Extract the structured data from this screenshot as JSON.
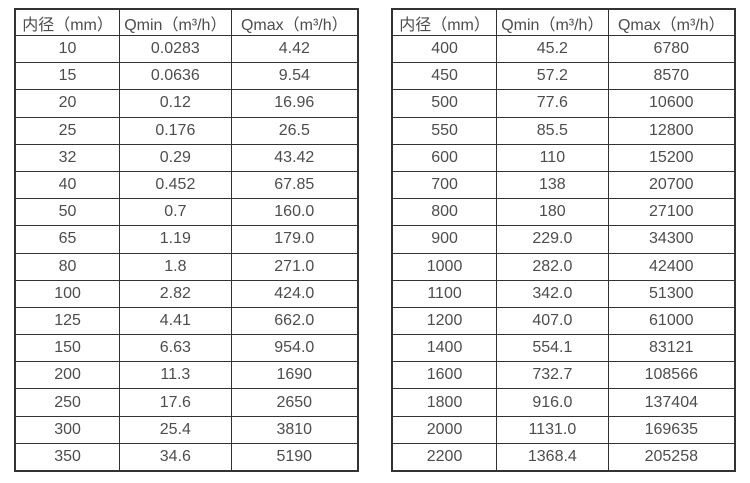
{
  "page": {
    "background": "#ffffff",
    "text_color": "#4d4d4d",
    "border_color": "#333333"
  },
  "tables": [
    {
      "name": "flow-spec-table-small-diameters",
      "headers": [
        "内径（mm）",
        "Qmin（m³/h）",
        "Qmax（m³/h）"
      ],
      "rows": [
        [
          "10",
          "0.0283",
          "4.42"
        ],
        [
          "15",
          "0.0636",
          "9.54"
        ],
        [
          "20",
          "0.12",
          "16.96"
        ],
        [
          "25",
          "0.176",
          "26.5"
        ],
        [
          "32",
          "0.29",
          "43.42"
        ],
        [
          "40",
          "0.452",
          "67.85"
        ],
        [
          "50",
          "0.7",
          "160.0"
        ],
        [
          "65",
          "1.19",
          "179.0"
        ],
        [
          "80",
          "1.8",
          "271.0"
        ],
        [
          "100",
          "2.82",
          "424.0"
        ],
        [
          "125",
          "4.41",
          "662.0"
        ],
        [
          "150",
          "6.63",
          "954.0"
        ],
        [
          "200",
          "11.3",
          "1690"
        ],
        [
          "250",
          "17.6",
          "2650"
        ],
        [
          "300",
          "25.4",
          "3810"
        ],
        [
          "350",
          "34.6",
          "5190"
        ]
      ]
    },
    {
      "name": "flow-spec-table-large-diameters",
      "headers": [
        "内径（mm）",
        "Qmin（m³/h）",
        "Qmax（m³/h）"
      ],
      "rows": [
        [
          "400",
          "45.2",
          "6780"
        ],
        [
          "450",
          "57.2",
          "8570"
        ],
        [
          "500",
          "77.6",
          "10600"
        ],
        [
          "550",
          "85.5",
          "12800"
        ],
        [
          "600",
          "110",
          "15200"
        ],
        [
          "700",
          "138",
          "20700"
        ],
        [
          "800",
          "180",
          "27100"
        ],
        [
          "900",
          "229.0",
          "34300"
        ],
        [
          "1000",
          "282.0",
          "42400"
        ],
        [
          "1100",
          "342.0",
          "51300"
        ],
        [
          "1200",
          "407.0",
          "61000"
        ],
        [
          "1400",
          "554.1",
          "83121"
        ],
        [
          "1600",
          "732.7",
          "108566"
        ],
        [
          "1800",
          "916.0",
          "137404"
        ],
        [
          "2000",
          "1131.0",
          "169635"
        ],
        [
          "2200",
          "1368.4",
          "205258"
        ]
      ]
    }
  ]
}
